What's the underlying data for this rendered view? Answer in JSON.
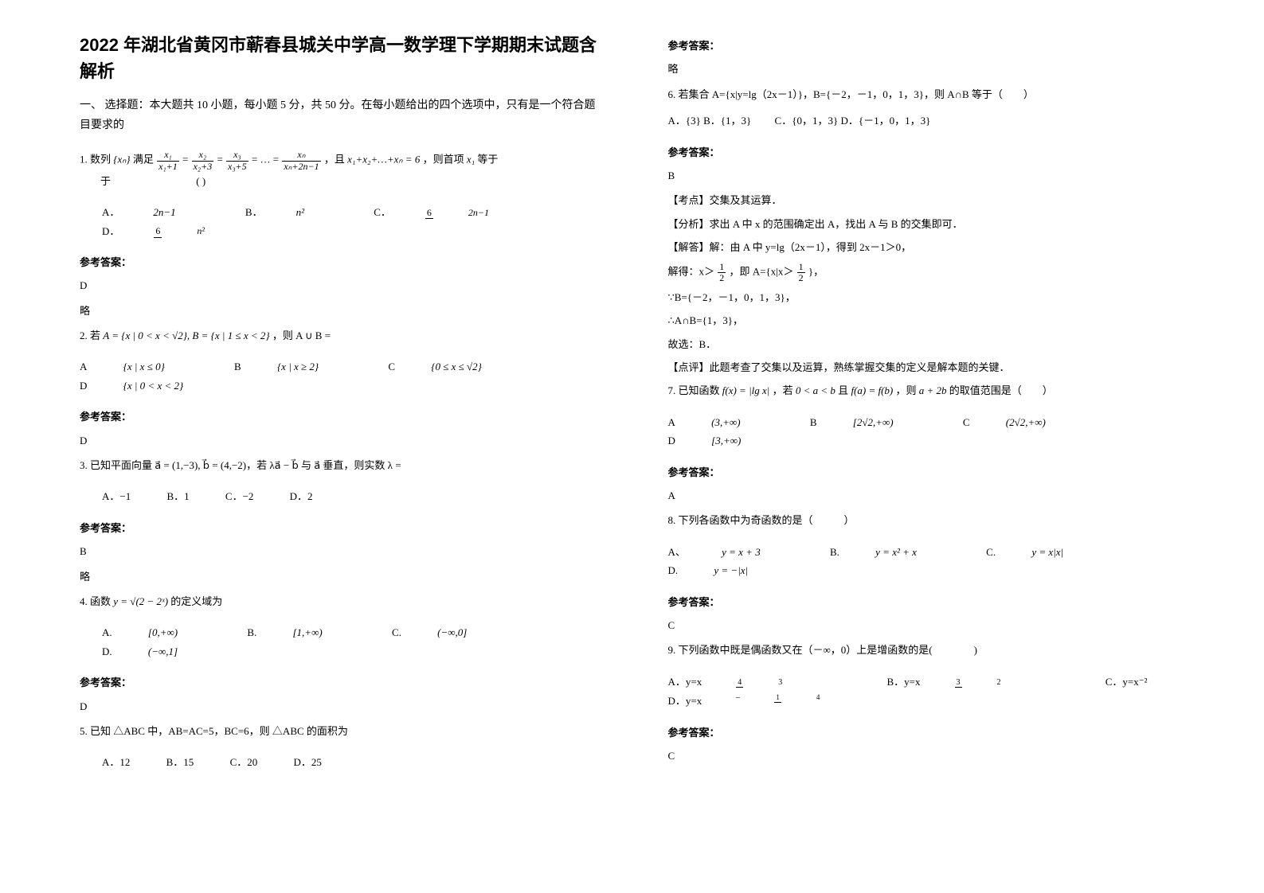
{
  "title": "2022 年湖北省黄冈市蕲春县城关中学高一数学理下学期期末试题含解析",
  "section1_head": "一、 选择题：本大题共 10 小题，每小题 5 分，共 50 分。在每小题给出的四个选项中，只有是一个符合题目要求的",
  "q1": {
    "stem_pre": "1. 数列",
    "stem_seq": "{xₙ}",
    "stem_mid1": "满足",
    "eq1_a": "x₁",
    "eq1_b": "x₁+1",
    "eq2_a": "x₂",
    "eq2_b": "x₂+3",
    "eq3_a": "x₃",
    "eq3_b": "x₃+5",
    "eqn_a": "xₙ",
    "eqn_b": "xₙ+2n−1",
    "stem_mid2": "，且",
    "sum_eq": "x₁+x₂+…+xₙ = 6",
    "stem_mid3": "，则首项",
    "firstterm": "x₁",
    "stem_mid4": "等于",
    "blank": "(    )",
    "A_pre": "A．",
    "A": "2n−1",
    "B_pre": "B．",
    "B": "n²",
    "C_pre": "C．",
    "C_num": "6",
    "C_den": "2n−1",
    "D_pre": "D．",
    "D_num": "6",
    "D_den": "n²",
    "ans_label": "参考答案：",
    "ans": "D",
    "note": "略"
  },
  "q2": {
    "stem_pre": "2. 若",
    "setA": "A = {x | 0 < x < √2}, B = {x | 1 ≤ x < 2}",
    "stem_mid": "，则 A ∪ B =",
    "A_pre": "A",
    "A": "{x | x ≤ 0}",
    "B_pre": "B",
    "B": "{x | x ≥ 2}",
    "C_pre": "C",
    "C": "{0 ≤ x ≤ √2}",
    "D_pre": "D",
    "D": "{x | 0 < x < 2}",
    "ans_label": "参考答案：",
    "ans": "D"
  },
  "q3": {
    "stem": "3. 已知平面向量 a⃗ = (1,−3), b⃗ = (4,−2)，若 λa⃗ − b⃗ 与 a⃗ 垂直，则实数 λ =",
    "A": "A．−1",
    "B": "B．1",
    "C": "C．−2",
    "D": "D．2",
    "ans_label": "参考答案：",
    "ans": "B",
    "note": "略"
  },
  "q4": {
    "stem_pre": "4. 函数",
    "fn": "y = √(2 − 2ˣ)",
    "stem_post": "的定义域为",
    "A_pre": "A.",
    "A": "[0,+∞)",
    "B_pre": "B.",
    "B": "[1,+∞)",
    "C_pre": "C.",
    "C": "(−∞,0]",
    "D_pre": "D.",
    "D": "(−∞,1]",
    "ans_label": "参考答案：",
    "ans": "D"
  },
  "q5": {
    "stem": "5. 已知 △ABC 中，AB=AC=5，BC=6，则 △ABC 的面积为",
    "A": "A．12",
    "B": "B．15",
    "C": "C．20",
    "D": "D．25",
    "ans_label": "参考答案：",
    "ans": "略"
  },
  "q6": {
    "stem": "6. 若集合 A={x|y=lg（2x－1）}，B={－2，－1，0，1，3}，则 A∩B 等于（　　）",
    "A": "A．{3}",
    "B": "B．{1，3}",
    "C": "C．{0，1，3}",
    "D": "D．{－1，0，1，3}",
    "ans_label": "参考答案：",
    "ans": "B",
    "tag1": "【考点】交集及其运算．",
    "tag2": "【分析】求出 A 中 x 的范围确定出 A，找出 A 与 B 的交集即可．",
    "tag3": "【解答】解：由 A 中 y=lg（2x－1），得到 2x－1＞0，",
    "s1_pre": "解得：x＞",
    "s1_num": "1",
    "s1_den": "2",
    "s1_mid": "，即 A={x|x＞",
    "s1_post": "}，",
    "s2": "∵B={－2，－1，0，1，3}，",
    "s3": "∴A∩B={1，3}，",
    "s4": "故选：B．",
    "tag4": "【点评】此题考查了交集以及运算，熟练掌握交集的定义是解本题的关键．"
  },
  "q7": {
    "stem_pre": "7. 已知函数",
    "fn": "f(x) = |lg x|",
    "stem_mid1": "，若",
    "cond1": "0 < a < b",
    "stem_mid2": "且",
    "cond2": "f(a) = f(b)",
    "stem_mid3": "，则",
    "expr": "a + 2b",
    "stem_post": "的取值范围是（　　）",
    "A_pre": "A",
    "A": "(3,+∞)",
    "B_pre": "B",
    "B": "[2√2,+∞)",
    "C_pre": "C",
    "C": "(2√2,+∞)",
    "D_pre": "D",
    "D": "[3,+∞)",
    "ans_label": "参考答案：",
    "ans": "A"
  },
  "q8": {
    "stem": "8. 下列各函数中为奇函数的是（　　　）",
    "A_pre": "A、",
    "A": "y = x + 3",
    "B_pre": "B.",
    "B": "y = x² + x",
    "C_pre": "C.",
    "C": "y = x|x|",
    "D_pre": "D.",
    "D": "y = −|x|",
    "ans_label": "参考答案：",
    "ans": "C"
  },
  "q9": {
    "stem": "9. 下列函数中既是偶函数又在（－∞，0）上是增函数的是(　　　　)",
    "A_pre": "A．y=x",
    "A_num": "4",
    "A_den": "3",
    "B_pre": "B．y=x",
    "B_num": "3",
    "B_den": "2",
    "C": "C．y=x⁻²",
    "D_pre": "D．y=x",
    "D_num": "1",
    "D_den": "4",
    "D_neg": "−",
    "ans_label": "参考答案：",
    "ans": "C"
  }
}
